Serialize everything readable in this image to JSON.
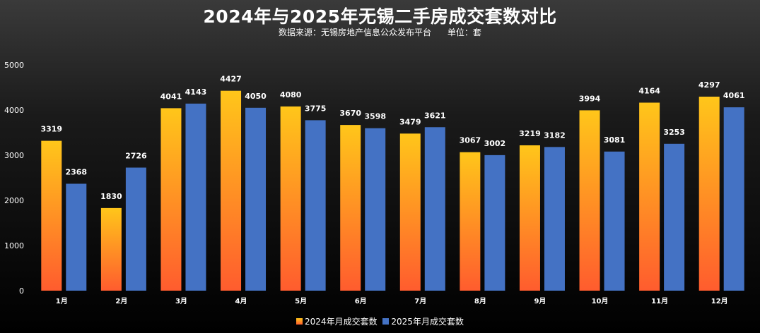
{
  "chart_data": {
    "type": "bar",
    "title": "2024年与2025年无锡二手房成交套数对比",
    "subtitle": "数据来源：无锡房地产信息公众发布平台      单位：套",
    "categories": [
      "1月",
      "2月",
      "3月",
      "4月",
      "5月",
      "6月",
      "7月",
      "8月",
      "9月",
      "10月",
      "11月",
      "12月"
    ],
    "series": [
      {
        "name": "2024年月成交套数",
        "values": [
          3319,
          1830,
          4041,
          4427,
          4080,
          3670,
          3479,
          3067,
          3219,
          3994,
          4164,
          4297
        ],
        "color_top": "#ffc61a",
        "color_bottom": "#ff5c2e"
      },
      {
        "name": "2025年月成交套数",
        "values": [
          2368,
          2726,
          4143,
          4050,
          3775,
          3598,
          3621,
          3002,
          3182,
          3081,
          3253,
          4061
        ],
        "color": "#4472c4"
      }
    ],
    "ylim": [
      0,
      5000
    ],
    "yticks": [
      0,
      1000,
      2000,
      3000,
      4000,
      5000
    ],
    "xlabel": "",
    "ylabel": "",
    "grid": false,
    "legend_position": "bottom"
  }
}
